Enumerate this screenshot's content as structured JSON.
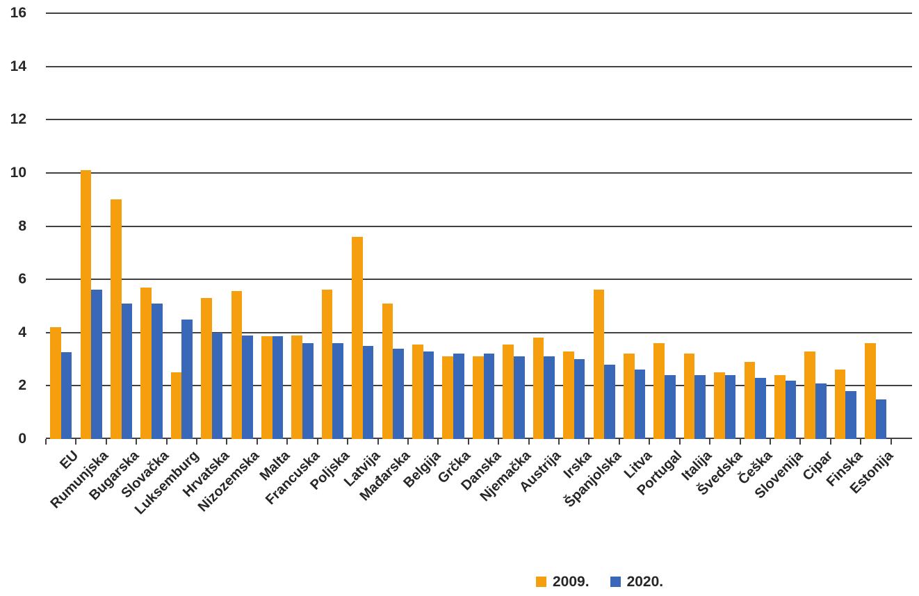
{
  "chart_data": {
    "type": "bar",
    "title": "",
    "xlabel": "",
    "ylabel": "",
    "categories": [
      "EU",
      "Rumunjska",
      "Bugarska",
      "Slovačka",
      "Luksemburg",
      "Hrvatska",
      "Nizozemska",
      "Malta",
      "Francuska",
      "Poljska",
      "Latvija",
      "Mađarska",
      "Belgija",
      "Grčka",
      "Danska",
      "Njemačka",
      "Austrija",
      "Irska",
      "Španjolska",
      "Litva",
      "Portugal",
      "Italija",
      "Švedska",
      "Češka",
      "Slovenija",
      "Cipar",
      "Finska",
      "Estonija"
    ],
    "series": [
      {
        "name": "2009.",
        "color": "#F59E0E",
        "values": [
          4.2,
          10.1,
          9.0,
          5.7,
          2.5,
          5.3,
          5.55,
          3.85,
          3.9,
          5.6,
          7.6,
          5.1,
          3.55,
          3.1,
          3.1,
          3.55,
          3.8,
          3.3,
          5.6,
          3.2,
          3.6,
          3.2,
          2.5,
          2.9,
          2.4,
          3.3,
          2.6,
          3.6
        ]
      },
      {
        "name": "2020.",
        "color": "#3A68B8",
        "values": [
          3.25,
          5.6,
          5.1,
          5.1,
          4.5,
          4.0,
          3.9,
          3.85,
          3.6,
          3.6,
          3.5,
          3.4,
          3.3,
          3.2,
          3.2,
          3.1,
          3.1,
          3.0,
          2.8,
          2.6,
          2.4,
          2.4,
          2.4,
          2.3,
          2.2,
          2.1,
          1.8,
          1.5
        ]
      }
    ],
    "ylim": [
      0,
      16
    ],
    "yticks": [
      0,
      2,
      4,
      6,
      8,
      10,
      12,
      14,
      16
    ],
    "grid": true,
    "legend_position": "bottom"
  },
  "colors": {
    "series_2009": "#F59E0E",
    "series_2020": "#3A68B8",
    "gridline": "#414042",
    "axis": "#414042",
    "text": "#262626",
    "background": "#FFFFFF"
  }
}
